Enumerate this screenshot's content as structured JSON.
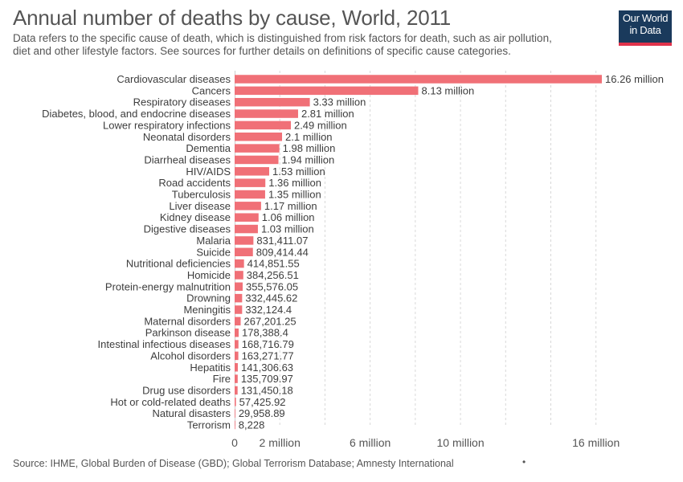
{
  "header": {
    "title": "Annual number of deaths by cause, World, 2011",
    "subtitle_line1": "Data refers to the specific cause of death, which is distinguished from risk factors for death, such as air pollution,",
    "subtitle_line2": "diet and other lifestyle factors. See sources for further details on definitions of specific cause categories."
  },
  "logo": {
    "line1": "Our World",
    "line2": "in Data",
    "bg_color": "#1a3a5c",
    "accent_color": "#e0324b"
  },
  "footer": {
    "source": "Source: IHME, Global Burden of Disease (GBD); Global Terrorism Database; Amnesty International",
    "dot": "•"
  },
  "chart_data": {
    "type": "bar",
    "orientation": "horizontal",
    "bar_color": "#f07077",
    "grid": true,
    "xlim": [
      0,
      16260000
    ],
    "x_ticks": [
      {
        "value": 0,
        "label": "0"
      },
      {
        "value": 2000000,
        "label": "2 million"
      },
      {
        "value": 6000000,
        "label": "6 million"
      },
      {
        "value": 10000000,
        "label": "10 million"
      },
      {
        "value": 16000000,
        "label": "16 million"
      }
    ],
    "gridlines": [
      2000000,
      4000000,
      6000000,
      8000000,
      10000000,
      12000000,
      14000000,
      16000000
    ],
    "categories": [
      "Cardiovascular diseases",
      "Cancers",
      "Respiratory diseases",
      "Diabetes, blood, and endocrine diseases",
      "Lower respiratory infections",
      "Neonatal disorders",
      "Dementia",
      "Diarrheal diseases",
      "HIV/AIDS",
      "Road accidents",
      "Tuberculosis",
      "Liver disease",
      "Kidney disease",
      "Digestive diseases",
      "Malaria",
      "Suicide",
      "Nutritional deficiencies",
      "Homicide",
      "Protein-energy malnutrition",
      "Drowning",
      "Meningitis",
      "Maternal disorders",
      "Parkinson disease",
      "Intestinal infectious diseases",
      "Alcohol disorders",
      "Hepatitis",
      "Fire",
      "Drug use disorders",
      "Hot or cold-related deaths",
      "Natural disasters",
      "Terrorism"
    ],
    "values": [
      16260000,
      8130000,
      3330000,
      2810000,
      2490000,
      2100000,
      1980000,
      1940000,
      1530000,
      1360000,
      1350000,
      1170000,
      1060000,
      1030000,
      831411.07,
      809414.44,
      414851.55,
      384256.51,
      355576.05,
      332445.62,
      332124.4,
      267201.25,
      178388.4,
      168716.79,
      163271.77,
      141306.63,
      135709.97,
      131450.18,
      57425.92,
      29958.89,
      8228
    ],
    "value_labels": [
      "16.26 million",
      "8.13 million",
      "3.33 million",
      "2.81 million",
      "2.49 million",
      "2.1 million",
      "1.98 million",
      "1.94 million",
      "1.53 million",
      "1.36 million",
      "1.35 million",
      "1.17 million",
      "1.06 million",
      "1.03 million",
      "831,411.07",
      "809,414.44",
      "414,851.55",
      "384,256.51",
      "355,576.05",
      "332,445.62",
      "332,124.4",
      "267,201.25",
      "178,388.4",
      "168,716.79",
      "163,271.77",
      "141,306.63",
      "135,709.97",
      "131,450.18",
      "57,425.92",
      "29,958.89",
      "8,228"
    ]
  }
}
